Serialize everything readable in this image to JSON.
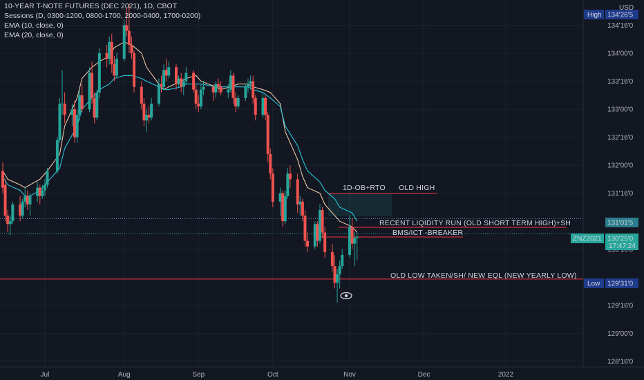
{
  "header": {
    "title": "10-YEAR T-NOTE FUTURES (DEC 2021), 1D, CBOT",
    "indicators": [
      "Sessions (D, 0300-1200, 0800-1700, 2000-0400, 1700-0200)",
      "EMA (10, close, 0)",
      "EMA (20, close, 0)"
    ]
  },
  "price_axis": {
    "currency": "USD",
    "ticks": [
      "134'16'0",
      "134'00'0",
      "133'16'0",
      "133'00'0",
      "132'16'0",
      "132'00'0",
      "131'16'0",
      "130'16'0",
      "129'16'0",
      "129'00'0",
      "128'16'0"
    ]
  },
  "time_axis": {
    "ticks": [
      "Jul",
      "Aug",
      "Sep",
      "Oct",
      "Nov",
      "Dec",
      "2022"
    ]
  },
  "labels": {
    "high": {
      "tag": "High",
      "price": "134'26'5"
    },
    "low": {
      "tag": "Low",
      "price": "129'31'0"
    },
    "line_price": "131'01'5",
    "symbol": "ZNZ2021",
    "last_price": "130'25'0",
    "countdown": "17:47:24"
  },
  "annotations": {
    "ob_rto": "1D-OB+RTO",
    "old_high": "OLD HIGH",
    "liquidity_run": "RECENT LIQIDITY RUN (OLD SHORT TERM HIGH)+SH",
    "breaker": "BMS/ICT -BREAKER",
    "old_low": "OLD LOW TAKEN/SH/ NEW EQL (NEW YEARLY LOW)"
  },
  "colors": {
    "background": "#131722",
    "up": "#26a69a",
    "down": "#ef5350",
    "ema10": "#e8c7a6",
    "ema20": "#26c6da",
    "grid": "#1e222d",
    "axis_text": "#b2b5be",
    "ann_red": "#f23645"
  },
  "chart_data": {
    "type": "candlestick",
    "title": "10-YEAR T-NOTE FUTURES (DEC 2021), 1D, CBOT",
    "ylim": [
      128.4,
      134.95
    ],
    "date_ticks": {
      "Jul": "2021-07-01",
      "Aug": "2021-08-02",
      "Sep": "2021-09-01",
      "Oct": "2021-10-01",
      "Nov": "2021-11-01",
      "Dec": "2021-12-01",
      "2022": "2022-01-03"
    },
    "series": [
      {
        "name": "EMA (10, close, 0)",
        "values": [
          131.9,
          131.75,
          131.65,
          131.6,
          131.65,
          131.75,
          131.9,
          132.2,
          132.7,
          133.2,
          133.55,
          133.75,
          133.85,
          133.95,
          134.1,
          134.2,
          134.15,
          134.0,
          133.75,
          133.45,
          133.35,
          133.4,
          133.5,
          133.55,
          133.6,
          133.5,
          133.4,
          133.35,
          133.4,
          133.45,
          133.45,
          133.4,
          133.35,
          133.3,
          133.1,
          132.6,
          132.1,
          131.8,
          131.6,
          131.5,
          131.3,
          131.1,
          131.0,
          130.9,
          130.8
        ]
      },
      {
        "name": "EMA (20, close, 0)",
        "values": [
          131.8,
          131.65,
          131.55,
          131.45,
          131.45,
          131.55,
          131.7,
          131.95,
          132.3,
          132.7,
          133.0,
          133.2,
          133.35,
          133.45,
          133.55,
          133.6,
          133.6,
          133.55,
          133.5,
          133.4,
          133.35,
          133.35,
          133.4,
          133.45,
          133.45,
          133.45,
          133.4,
          133.4,
          133.4,
          133.4,
          133.4,
          133.35,
          133.3,
          133.2,
          133.05,
          132.7,
          132.35,
          132.1,
          131.9,
          131.7,
          131.55,
          131.4,
          131.25,
          131.15,
          131.0
        ]
      }
    ],
    "candles": [
      {
        "d": "2021-06-14",
        "o": 131.9,
        "h": 132.05,
        "l": 131.5,
        "c": 131.6
      },
      {
        "d": "2021-06-15",
        "o": 131.65,
        "h": 131.75,
        "l": 131.0,
        "c": 131.1
      },
      {
        "d": "2021-06-16",
        "o": 131.1,
        "h": 131.2,
        "l": 130.8,
        "c": 130.95
      },
      {
        "d": "2021-06-17",
        "o": 130.95,
        "h": 131.1,
        "l": 130.75,
        "c": 131.0
      },
      {
        "d": "2021-06-18",
        "o": 131.0,
        "h": 131.35,
        "l": 130.95,
        "c": 131.3
      },
      {
        "d": "2021-06-21",
        "o": 131.3,
        "h": 131.45,
        "l": 131.0,
        "c": 131.1
      },
      {
        "d": "2021-06-22",
        "o": 131.1,
        "h": 131.4,
        "l": 131.05,
        "c": 131.35
      },
      {
        "d": "2021-06-23",
        "o": 131.35,
        "h": 131.6,
        "l": 131.25,
        "c": 131.45
      },
      {
        "d": "2021-06-24",
        "o": 131.45,
        "h": 131.55,
        "l": 131.2,
        "c": 131.3
      },
      {
        "d": "2021-06-25",
        "o": 131.3,
        "h": 131.5,
        "l": 131.1,
        "c": 131.45
      },
      {
        "d": "2021-06-28",
        "o": 131.45,
        "h": 131.7,
        "l": 131.35,
        "c": 131.6
      },
      {
        "d": "2021-06-29",
        "o": 131.6,
        "h": 131.65,
        "l": 131.3,
        "c": 131.45
      },
      {
        "d": "2021-06-30",
        "o": 131.45,
        "h": 131.65,
        "l": 131.4,
        "c": 131.55
      },
      {
        "d": "2021-07-01",
        "o": 131.55,
        "h": 131.75,
        "l": 131.45,
        "c": 131.65
      },
      {
        "d": "2021-07-02",
        "o": 131.65,
        "h": 131.95,
        "l": 131.6,
        "c": 131.9
      },
      {
        "d": "2021-07-06",
        "o": 131.9,
        "h": 132.5,
        "l": 131.85,
        "c": 132.45
      },
      {
        "d": "2021-07-07",
        "o": 132.45,
        "h": 133.2,
        "l": 132.4,
        "c": 133.1
      },
      {
        "d": "2021-07-08",
        "o": 133.1,
        "h": 133.7,
        "l": 132.9,
        "c": 133.1
      },
      {
        "d": "2021-07-09",
        "o": 133.1,
        "h": 133.3,
        "l": 132.75,
        "c": 132.9
      },
      {
        "d": "2021-07-12",
        "o": 132.9,
        "h": 133.1,
        "l": 132.7,
        "c": 133.0
      },
      {
        "d": "2021-07-13",
        "o": 133.0,
        "h": 133.15,
        "l": 132.4,
        "c": 132.5
      },
      {
        "d": "2021-07-14",
        "o": 132.5,
        "h": 133.0,
        "l": 132.4,
        "c": 132.9
      },
      {
        "d": "2021-07-15",
        "o": 132.9,
        "h": 133.35,
        "l": 132.8,
        "c": 133.25
      },
      {
        "d": "2021-07-16",
        "o": 133.25,
        "h": 133.45,
        "l": 132.95,
        "c": 133.0
      },
      {
        "d": "2021-07-19",
        "o": 133.0,
        "h": 133.75,
        "l": 132.95,
        "c": 133.65
      },
      {
        "d": "2021-07-20",
        "o": 133.65,
        "h": 133.85,
        "l": 133.1,
        "c": 133.2
      },
      {
        "d": "2021-07-21",
        "o": 133.2,
        "h": 133.3,
        "l": 132.75,
        "c": 132.85
      },
      {
        "d": "2021-07-22",
        "o": 132.85,
        "h": 133.35,
        "l": 132.8,
        "c": 133.3
      },
      {
        "d": "2021-07-23",
        "o": 133.3,
        "h": 134.1,
        "l": 133.2,
        "c": 134.0
      },
      {
        "d": "2021-07-26",
        "o": 134.0,
        "h": 134.15,
        "l": 133.75,
        "c": 133.9
      },
      {
        "d": "2021-07-27",
        "o": 133.9,
        "h": 134.3,
        "l": 133.8,
        "c": 134.2
      },
      {
        "d": "2021-07-28",
        "o": 134.2,
        "h": 134.35,
        "l": 133.65,
        "c": 133.8
      },
      {
        "d": "2021-07-29",
        "o": 133.8,
        "h": 133.95,
        "l": 133.5,
        "c": 133.6
      },
      {
        "d": "2021-07-30",
        "o": 133.6,
        "h": 134.0,
        "l": 133.55,
        "c": 133.9
      },
      {
        "d": "2021-08-02",
        "o": 133.9,
        "h": 134.6,
        "l": 133.85,
        "c": 134.5
      },
      {
        "d": "2021-08-03",
        "o": 134.5,
        "h": 134.8,
        "l": 134.3,
        "c": 134.4
      },
      {
        "d": "2021-08-04",
        "o": 134.4,
        "h": 134.88,
        "l": 134.0,
        "c": 134.15
      },
      {
        "d": "2021-08-05",
        "o": 134.15,
        "h": 134.3,
        "l": 133.9,
        "c": 134.0
      },
      {
        "d": "2021-08-06",
        "o": 134.0,
        "h": 134.05,
        "l": 133.3,
        "c": 133.4
      },
      {
        "d": "2021-08-09",
        "o": 133.4,
        "h": 133.5,
        "l": 133.0,
        "c": 133.1
      },
      {
        "d": "2021-08-10",
        "o": 133.1,
        "h": 133.2,
        "l": 132.7,
        "c": 132.8
      },
      {
        "d": "2021-08-11",
        "o": 132.8,
        "h": 133.0,
        "l": 132.6,
        "c": 132.9
      },
      {
        "d": "2021-08-12",
        "o": 132.9,
        "h": 133.05,
        "l": 132.75,
        "c": 132.85
      },
      {
        "d": "2021-08-13",
        "o": 132.85,
        "h": 133.2,
        "l": 132.8,
        "c": 133.1
      },
      {
        "d": "2021-08-16",
        "o": 133.1,
        "h": 133.55,
        "l": 133.05,
        "c": 133.45
      },
      {
        "d": "2021-08-17",
        "o": 133.45,
        "h": 133.6,
        "l": 133.3,
        "c": 133.4
      },
      {
        "d": "2021-08-18",
        "o": 133.4,
        "h": 133.8,
        "l": 133.35,
        "c": 133.7
      },
      {
        "d": "2021-08-19",
        "o": 133.7,
        "h": 133.9,
        "l": 133.5,
        "c": 133.6
      },
      {
        "d": "2021-08-20",
        "o": 133.6,
        "h": 133.85,
        "l": 133.55,
        "c": 133.75
      },
      {
        "d": "2021-08-23",
        "o": 133.75,
        "h": 133.8,
        "l": 133.35,
        "c": 133.45
      },
      {
        "d": "2021-08-24",
        "o": 133.45,
        "h": 133.6,
        "l": 133.4,
        "c": 133.55
      },
      {
        "d": "2021-08-25",
        "o": 133.55,
        "h": 133.65,
        "l": 133.3,
        "c": 133.4
      },
      {
        "d": "2021-08-26",
        "o": 133.4,
        "h": 133.55,
        "l": 133.25,
        "c": 133.5
      },
      {
        "d": "2021-08-27",
        "o": 133.5,
        "h": 133.75,
        "l": 133.45,
        "c": 133.65
      },
      {
        "d": "2021-08-30",
        "o": 133.65,
        "h": 133.7,
        "l": 133.3,
        "c": 133.35
      },
      {
        "d": "2021-08-31",
        "o": 133.35,
        "h": 133.45,
        "l": 133.0,
        "c": 133.1
      },
      {
        "d": "2021-09-01",
        "o": 133.1,
        "h": 133.25,
        "l": 132.95,
        "c": 133.05
      },
      {
        "d": "2021-09-02",
        "o": 133.05,
        "h": 133.45,
        "l": 133.0,
        "c": 133.35
      },
      {
        "d": "2021-09-03",
        "o": 133.35,
        "h": 133.5,
        "l": 133.25,
        "c": 133.4
      },
      {
        "d": "2021-09-07",
        "o": 133.4,
        "h": 133.45,
        "l": 133.15,
        "c": 133.3
      },
      {
        "d": "2021-09-08",
        "o": 133.3,
        "h": 133.5,
        "l": 133.2,
        "c": 133.45
      },
      {
        "d": "2021-09-09",
        "o": 133.45,
        "h": 133.55,
        "l": 133.3,
        "c": 133.4
      },
      {
        "d": "2021-09-10",
        "o": 133.4,
        "h": 133.5,
        "l": 133.25,
        "c": 133.3
      },
      {
        "d": "2021-09-13",
        "o": 133.3,
        "h": 133.45,
        "l": 133.2,
        "c": 133.35
      },
      {
        "d": "2021-09-14",
        "o": 133.35,
        "h": 133.7,
        "l": 133.3,
        "c": 133.6
      },
      {
        "d": "2021-09-15",
        "o": 133.6,
        "h": 133.65,
        "l": 133.1,
        "c": 133.2
      },
      {
        "d": "2021-09-16",
        "o": 133.2,
        "h": 133.3,
        "l": 132.95,
        "c": 133.05
      },
      {
        "d": "2021-09-17",
        "o": 133.05,
        "h": 133.25,
        "l": 133.0,
        "c": 133.2
      },
      {
        "d": "2021-09-20",
        "o": 133.2,
        "h": 133.45,
        "l": 133.15,
        "c": 133.4
      },
      {
        "d": "2021-09-21",
        "o": 133.4,
        "h": 133.55,
        "l": 133.3,
        "c": 133.45
      },
      {
        "d": "2021-09-22",
        "o": 133.45,
        "h": 133.6,
        "l": 133.35,
        "c": 133.5
      },
      {
        "d": "2021-09-23",
        "o": 133.5,
        "h": 133.6,
        "l": 133.1,
        "c": 133.2
      },
      {
        "d": "2021-09-24",
        "o": 133.2,
        "h": 133.25,
        "l": 132.8,
        "c": 132.9
      },
      {
        "d": "2021-09-27",
        "o": 132.9,
        "h": 133.3,
        "l": 132.85,
        "c": 133.2
      },
      {
        "d": "2021-09-28",
        "o": 133.2,
        "h": 133.25,
        "l": 132.8,
        "c": 132.9
      },
      {
        "d": "2021-09-29",
        "o": 132.9,
        "h": 132.95,
        "l": 132.05,
        "c": 132.2
      },
      {
        "d": "2021-09-30",
        "o": 132.2,
        "h": 132.3,
        "l": 131.75,
        "c": 131.85
      },
      {
        "d": "2021-10-01",
        "o": 131.85,
        "h": 131.95,
        "l": 131.25,
        "c": 131.35
      },
      {
        "d": "2021-10-04",
        "o": 131.35,
        "h": 131.6,
        "l": 131.1,
        "c": 131.5
      },
      {
        "d": "2021-10-05",
        "o": 131.5,
        "h": 131.55,
        "l": 130.9,
        "c": 131.0
      },
      {
        "d": "2021-10-06",
        "o": 131.0,
        "h": 131.55,
        "l": 130.95,
        "c": 131.45
      },
      {
        "d": "2021-10-07",
        "o": 131.45,
        "h": 131.95,
        "l": 131.4,
        "c": 131.85
      },
      {
        "d": "2021-10-08",
        "o": 131.85,
        "h": 132.0,
        "l": 131.6,
        "c": 131.75
      },
      {
        "d": "2021-10-11",
        "o": 131.75,
        "h": 131.85,
        "l": 131.15,
        "c": 131.3
      },
      {
        "d": "2021-10-12",
        "o": 131.3,
        "h": 131.45,
        "l": 131.1,
        "c": 131.35
      },
      {
        "d": "2021-10-13",
        "o": 131.35,
        "h": 131.4,
        "l": 131.0,
        "c": 131.1
      },
      {
        "d": "2021-10-14",
        "o": 131.1,
        "h": 131.2,
        "l": 130.55,
        "c": 130.65
      },
      {
        "d": "2021-10-15",
        "o": 130.65,
        "h": 130.8,
        "l": 130.45,
        "c": 130.55
      },
      {
        "d": "2021-10-18",
        "o": 130.55,
        "h": 131.0,
        "l": 130.5,
        "c": 130.95
      },
      {
        "d": "2021-10-19",
        "o": 130.95,
        "h": 131.0,
        "l": 130.55,
        "c": 130.65
      },
      {
        "d": "2021-10-20",
        "o": 130.65,
        "h": 131.3,
        "l": 130.6,
        "c": 131.2
      },
      {
        "d": "2021-10-21",
        "o": 131.2,
        "h": 131.25,
        "l": 130.7,
        "c": 130.8
      },
      {
        "d": "2021-10-22",
        "o": 130.8,
        "h": 130.9,
        "l": 130.35,
        "c": 130.45
      },
      {
        "d": "2021-10-25",
        "o": 130.45,
        "h": 130.6,
        "l": 130.1,
        "c": 130.2
      },
      {
        "d": "2021-10-26",
        "o": 130.2,
        "h": 130.4,
        "l": 129.8,
        "c": 129.9
      },
      {
        "d": "2021-10-27",
        "o": 129.9,
        "h": 130.15,
        "l": 129.55,
        "c": 130.05
      },
      {
        "d": "2021-10-28",
        "o": 130.05,
        "h": 130.3,
        "l": 129.8,
        "c": 130.2
      },
      {
        "d": "2021-10-29",
        "o": 130.2,
        "h": 130.5,
        "l": 130.15,
        "c": 130.4
      },
      {
        "d": "2021-11-01",
        "o": 130.4,
        "h": 131.1,
        "l": 130.35,
        "c": 130.9
      },
      {
        "d": "2021-11-02",
        "o": 130.9,
        "h": 131.05,
        "l": 130.5,
        "c": 130.6
      },
      {
        "d": "2021-11-03",
        "o": 130.6,
        "h": 130.8,
        "l": 130.2,
        "c": 130.7
      },
      {
        "d": "2021-11-04",
        "o": 130.7,
        "h": 130.8,
        "l": 130.3,
        "c": 130.72
      }
    ]
  }
}
